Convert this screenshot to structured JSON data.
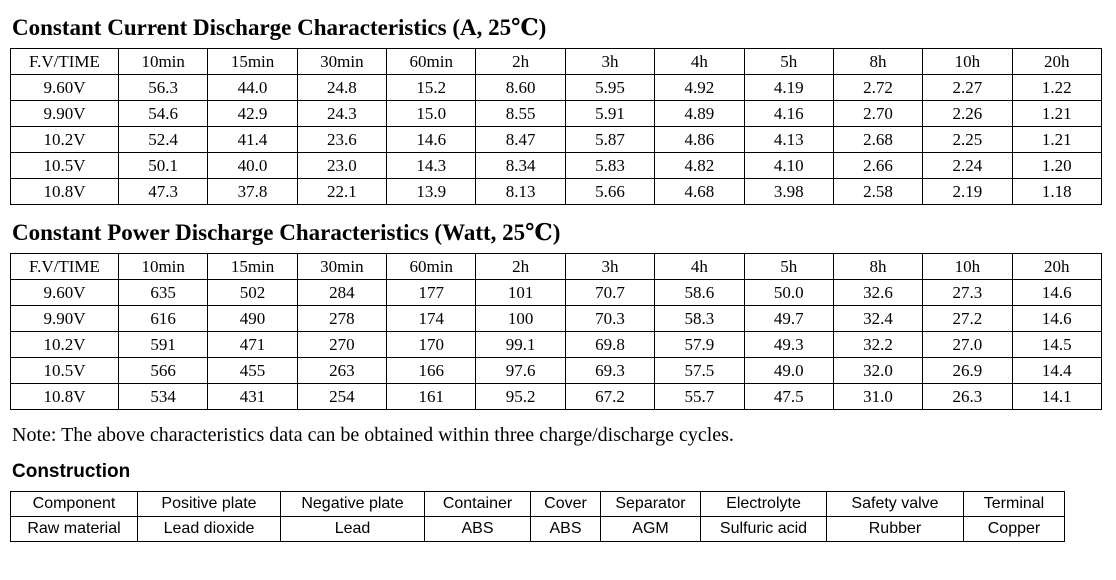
{
  "tables": [
    {
      "title": "Constant Current Discharge Characteristics (A, 25℃)",
      "headers": [
        "F.V/TIME",
        "10min",
        "15min",
        "30min",
        "60min",
        "2h",
        "3h",
        "4h",
        "5h",
        "8h",
        "10h",
        "20h"
      ],
      "rows": [
        [
          "9.60V",
          "56.3",
          "44.0",
          "24.8",
          "15.2",
          "8.60",
          "5.95",
          "4.92",
          "4.19",
          "2.72",
          "2.27",
          "1.22"
        ],
        [
          "9.90V",
          "54.6",
          "42.9",
          "24.3",
          "15.0",
          "8.55",
          "5.91",
          "4.89",
          "4.16",
          "2.70",
          "2.26",
          "1.21"
        ],
        [
          "10.2V",
          "52.4",
          "41.4",
          "23.6",
          "14.6",
          "8.47",
          "5.87",
          "4.86",
          "4.13",
          "2.68",
          "2.25",
          "1.21"
        ],
        [
          "10.5V",
          "50.1",
          "40.0",
          "23.0",
          "14.3",
          "8.34",
          "5.83",
          "4.82",
          "4.10",
          "2.66",
          "2.24",
          "1.20"
        ],
        [
          "10.8V",
          "47.3",
          "37.8",
          "22.1",
          "13.9",
          "8.13",
          "5.66",
          "4.68",
          "3.98",
          "2.58",
          "2.19",
          "1.18"
        ]
      ]
    },
    {
      "title": "Constant Power Discharge Characteristics (Watt, 25℃)",
      "headers": [
        "F.V/TIME",
        "10min",
        "15min",
        "30min",
        "60min",
        "2h",
        "3h",
        "4h",
        "5h",
        "8h",
        "10h",
        "20h"
      ],
      "rows": [
        [
          "9.60V",
          "635",
          "502",
          "284",
          "177",
          "101",
          "70.7",
          "58.6",
          "50.0",
          "32.6",
          "27.3",
          "14.6"
        ],
        [
          "9.90V",
          "616",
          "490",
          "278",
          "174",
          "100",
          "70.3",
          "58.3",
          "49.7",
          "32.4",
          "27.2",
          "14.6"
        ],
        [
          "10.2V",
          "591",
          "471",
          "270",
          "170",
          "99.1",
          "69.8",
          "57.9",
          "49.3",
          "32.2",
          "27.0",
          "14.5"
        ],
        [
          "10.5V",
          "566",
          "455",
          "263",
          "166",
          "97.6",
          "69.3",
          "57.5",
          "49.0",
          "32.0",
          "26.9",
          "14.4"
        ],
        [
          "10.8V",
          "534",
          "431",
          "254",
          "161",
          "95.2",
          "67.2",
          "55.7",
          "47.5",
          "31.0",
          "26.3",
          "14.1"
        ]
      ]
    }
  ],
  "note": "Note: The above characteristics data can be obtained within three charge/discharge cycles.",
  "construction": {
    "title": "Construction",
    "table": {
      "rows": [
        [
          "Component",
          "Positive plate",
          "Negative plate",
          "Container",
          "Cover",
          "Separator",
          "Electrolyte",
          "Safety valve",
          "Terminal"
        ],
        [
          "Raw material",
          "Lead dioxide",
          "Lead",
          "ABS",
          "ABS",
          "AGM",
          "Sulfuric acid",
          "Rubber",
          "Copper"
        ]
      ]
    }
  }
}
